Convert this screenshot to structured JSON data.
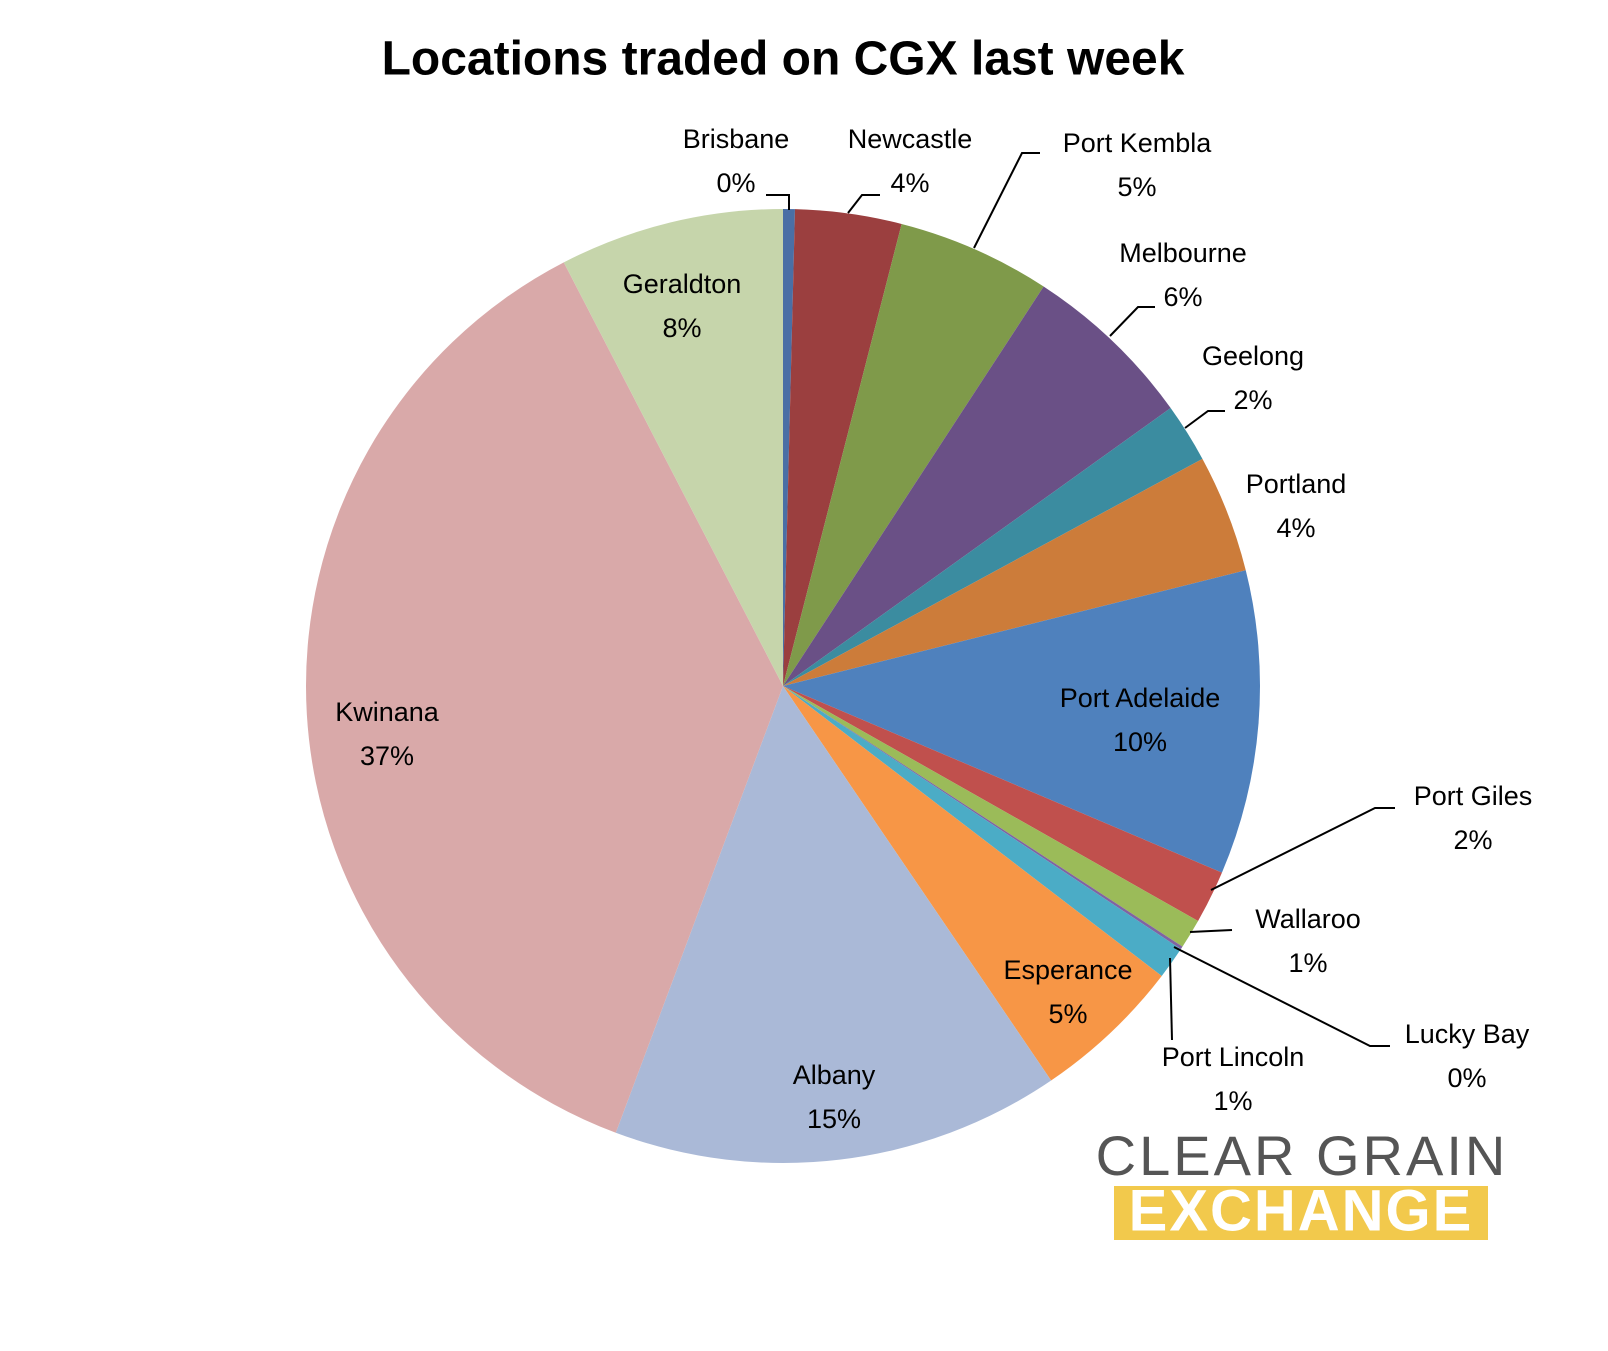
{
  "chart_data": {
    "type": "pie",
    "title": "Locations traded on CGX last week",
    "categories": [
      "Brisbane",
      "Newcastle",
      "Port Kembla",
      "Melbourne",
      "Geelong",
      "Portland",
      "Port Adelaide",
      "Port Giles",
      "Wallaroo",
      "Lucky Bay",
      "Port Lincoln",
      "Esperance",
      "Albany",
      "Kwinana",
      "Geraldton"
    ],
    "values": [
      0.4,
      3.6,
      5.2,
      5.9,
      2.0,
      4.0,
      10.3,
      1.8,
      1.0,
      0.1,
      1.1,
      5.1,
      15.2,
      36.7,
      7.6
    ],
    "value_labels": [
      "0%",
      "4%",
      "5%",
      "6%",
      "2%",
      "4%",
      "10%",
      "2%",
      "1%",
      "0%",
      "1%",
      "5%",
      "15%",
      "37%",
      "8%"
    ],
    "colors": [
      "#4a6fa5",
      "#9b3f3f",
      "#7f9a4a",
      "#6a5086",
      "#3b8ca0",
      "#cc7c3a",
      "#4f81bd",
      "#c0504d",
      "#9bbb59",
      "#8064a2",
      "#4bacc6",
      "#f79646",
      "#aab9d7",
      "#d9a9a9",
      "#c6d5ab"
    ]
  },
  "logo": {
    "line1": "CLEAR GRAIN",
    "line2": "EXCHANGE"
  }
}
